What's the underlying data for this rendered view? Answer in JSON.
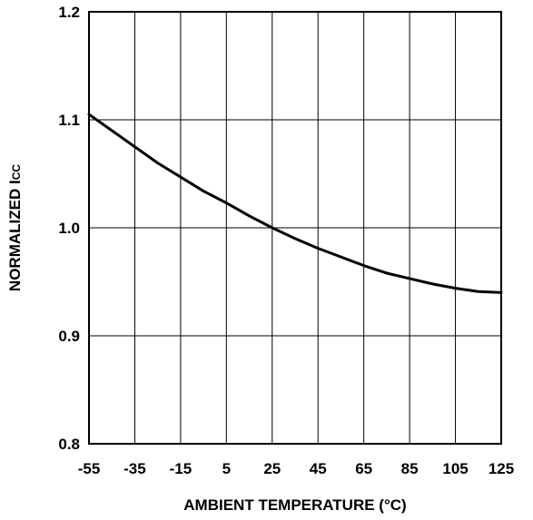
{
  "chart_data": {
    "type": "line",
    "xlabel": "AMBIENT TEMPERATURE (°C)",
    "ylabel_main": "NORMALIZED I",
    "ylabel_sub": "CC",
    "xlim": [
      -55,
      125
    ],
    "ylim": [
      0.8,
      1.2
    ],
    "x_ticks": [
      -55,
      -35,
      -15,
      5,
      25,
      45,
      65,
      85,
      105,
      125
    ],
    "x_tick_labels": [
      "-55",
      "-35",
      "-15",
      "5",
      "25",
      "45",
      "65",
      "85",
      "105",
      "125"
    ],
    "y_ticks": [
      0.8,
      0.9,
      1.0,
      1.1,
      1.2
    ],
    "y_tick_labels": [
      "0.8",
      "0.9",
      "1.0",
      "1.1",
      "1.2"
    ],
    "grid": true,
    "series": [
      {
        "x": [
          -55,
          -45,
          -35,
          -25,
          -15,
          -5,
          5,
          15,
          25,
          35,
          45,
          55,
          65,
          75,
          85,
          95,
          105,
          115,
          125
        ],
        "y": [
          1.105,
          1.09,
          1.075,
          1.06,
          1.047,
          1.034,
          1.023,
          1.011,
          1.0,
          0.99,
          0.981,
          0.973,
          0.965,
          0.958,
          0.953,
          0.948,
          0.944,
          0.941,
          0.94
        ]
      }
    ]
  }
}
